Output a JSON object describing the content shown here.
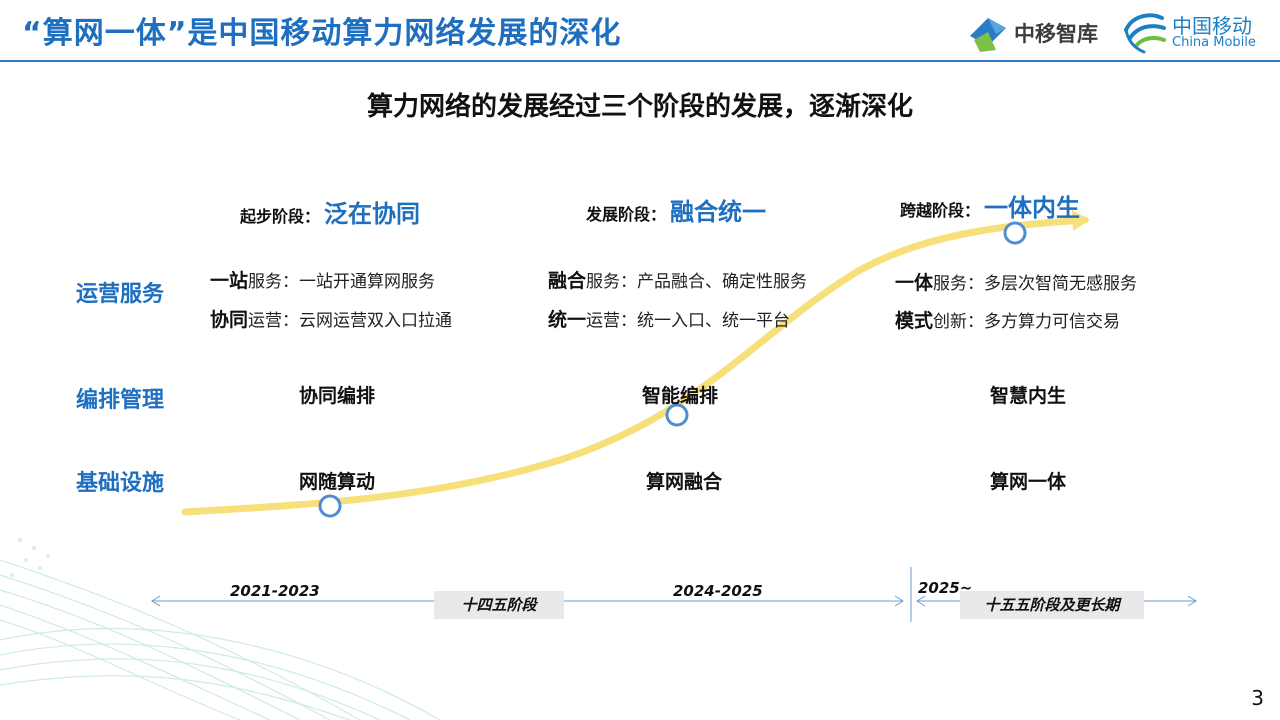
{
  "header": {
    "title": "“算网一体”是中国移动算力网络发展的深化",
    "logo_zhiku": "中移智库",
    "logo_cm_cn": "中国移动",
    "logo_cm_en": "China Mobile"
  },
  "subtitle": "算力网络的发展经过三个阶段的发展，逐渐深化",
  "row_labels": [
    "运营服务",
    "编排管理",
    "基础设施"
  ],
  "stages": [
    {
      "prefix": "起步阶段：",
      "name": "泛在协同",
      "service_lines": [
        {
          "bold": "一站",
          "rest": "服务：一站开通算网服务"
        },
        {
          "bold": "协同",
          "rest": "运营：云网运营双入口拉通"
        }
      ],
      "orchestration": "协同编排",
      "infrastructure": "网随算动"
    },
    {
      "prefix": "发展阶段：",
      "name": "融合统一",
      "service_lines": [
        {
          "bold": "融合",
          "rest": "服务：产品融合、确定性服务"
        },
        {
          "bold": "统一",
          "rest": "运营：统一入口、统一平台"
        }
      ],
      "orchestration": "智能编排",
      "infrastructure": "算网融合"
    },
    {
      "prefix": "跨越阶段：",
      "name": "一体内生",
      "service_lines": [
        {
          "bold": "一体",
          "rest": "服务：多层次智简无感服务"
        },
        {
          "bold": "模式",
          "rest": "创新：多方算力可信交易"
        }
      ],
      "orchestration": "智慧内生",
      "infrastructure": "算网一体"
    }
  ],
  "timeline": {
    "periods": [
      "2021-2023",
      "2024-2025",
      "2025~"
    ],
    "plans": [
      "十四五阶段",
      "十五五阶段及更长期"
    ]
  },
  "colors": {
    "accent": "#1f6fc1",
    "curve": "#f7e07a",
    "marker": "#4f8ed0",
    "plan_box": "#e9e9e9"
  },
  "page_number": "3"
}
